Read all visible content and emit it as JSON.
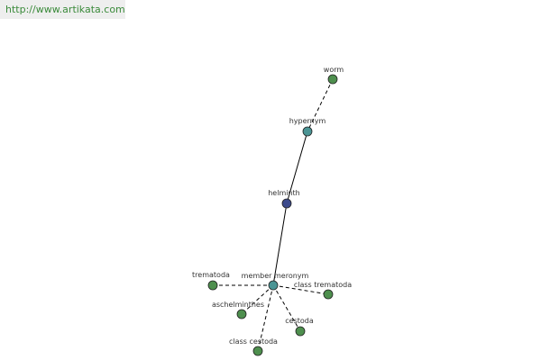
{
  "header": {
    "url": "http://www.artikata.com"
  },
  "nodes": [
    {
      "label": "worm"
    },
    {
      "label": "hypernym"
    },
    {
      "label": "helminth"
    },
    {
      "label": "member meronym"
    },
    {
      "label": "trematoda"
    },
    {
      "label": "class trematoda"
    },
    {
      "label": "aschelminthes"
    },
    {
      "label": "cestoda"
    },
    {
      "label": "class cestoda"
    }
  ]
}
